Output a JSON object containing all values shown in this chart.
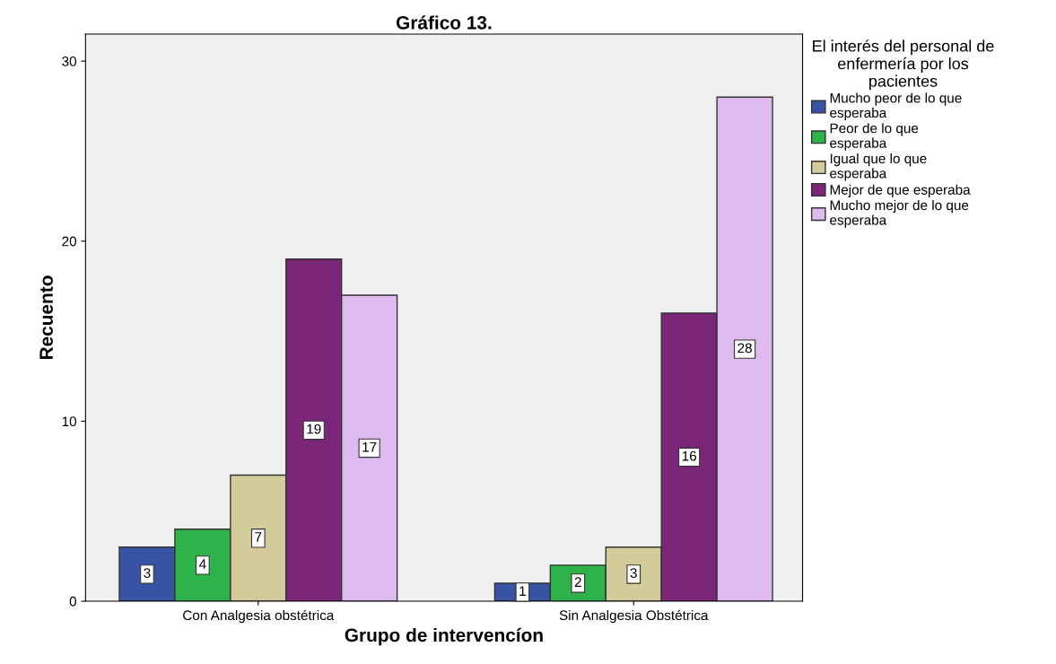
{
  "chart_data": {
    "type": "bar",
    "title": "Gráfico 13.",
    "xlabel": "Grupo de intervencíon",
    "ylabel": "Recuento",
    "legend_title": "El interés del personal de enfermería por los pacientes",
    "categories": [
      "Con Analgesia obstétrica",
      "Sin Analgesia Obstétrica"
    ],
    "series": [
      {
        "name": "Mucho peor de lo que esperaba",
        "color": "#3953a4",
        "values": [
          3,
          1
        ]
      },
      {
        "name": "Peor de lo que esperaba",
        "color": "#2db34a",
        "values": [
          4,
          2
        ]
      },
      {
        "name": "Igual que lo que esperaba",
        "color": "#d3cb99",
        "values": [
          7,
          3
        ]
      },
      {
        "name": "Mejor de que esperaba",
        "color": "#7b2679",
        "values": [
          19,
          16
        ]
      },
      {
        "name": "Mucho mejor de lo que esperaba",
        "color": "#dfbaf1",
        "values": [
          17,
          28
        ]
      }
    ],
    "ylim": [
      0,
      31.5
    ],
    "yticks": [
      0,
      10,
      20,
      30
    ],
    "grid": false,
    "legend": "right",
    "data_labels": true
  }
}
